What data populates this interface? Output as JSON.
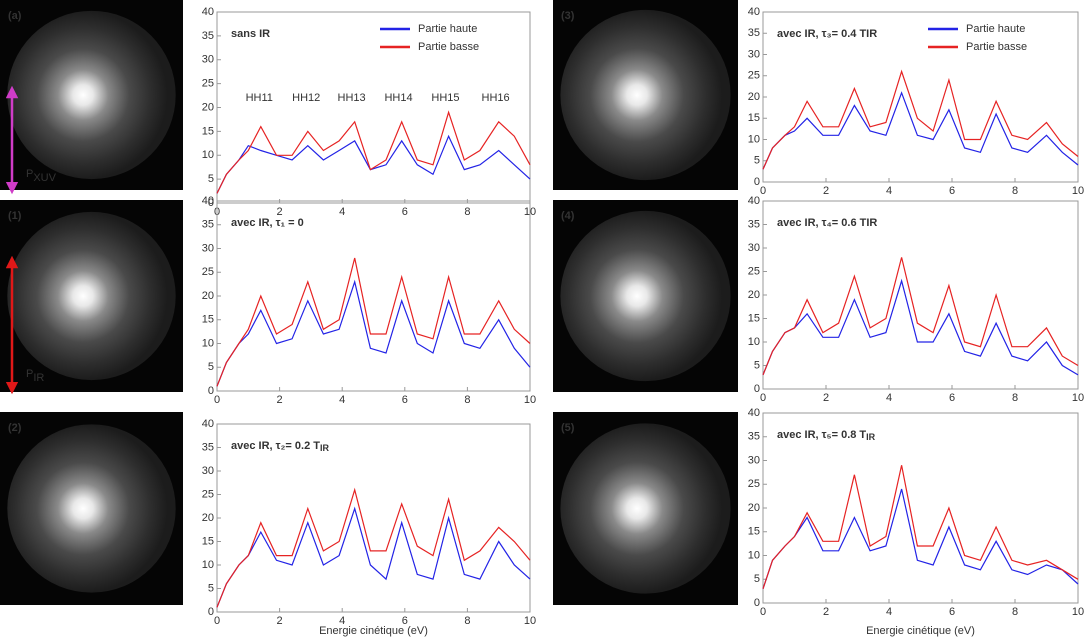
{
  "chart_data": [
    {
      "type": "line",
      "panel_label": "(a)",
      "title": "sans IR",
      "polarization": {
        "main": "P",
        "sub": "XUV",
        "color": "#d03cc8"
      },
      "legend": "upper right",
      "annotations": [
        "HH11",
        "HH12",
        "HH13",
        "HH14",
        "HH15",
        "HH16"
      ],
      "x": [
        0,
        0.3,
        0.7,
        1.0,
        1.4,
        1.9,
        2.4,
        2.9,
        3.4,
        3.9,
        4.4,
        4.9,
        5.4,
        5.9,
        6.4,
        6.9,
        7.4,
        7.9,
        8.4,
        9.0,
        9.5,
        10
      ],
      "series": [
        {
          "name": "Partie haute",
          "color": "#2323e6",
          "values": [
            2,
            6,
            9,
            12,
            11,
            10,
            9,
            12,
            9,
            11,
            13,
            7,
            8,
            13,
            8,
            6,
            14,
            7,
            8,
            11,
            8,
            5
          ]
        },
        {
          "name": "Partie basse",
          "color": "#e62323",
          "values": [
            2,
            6,
            9,
            11,
            16,
            10,
            10,
            15,
            11,
            13,
            17,
            7,
            9,
            17,
            9,
            8,
            19,
            9,
            11,
            17,
            14,
            8
          ]
        }
      ],
      "xlim": [
        0,
        10
      ],
      "xticks": [
        0,
        2,
        4,
        6,
        8,
        10
      ],
      "ylim": [
        0,
        40
      ],
      "yticks": [
        0,
        5,
        10,
        15,
        20,
        25,
        30,
        35,
        40
      ]
    },
    {
      "type": "line",
      "panel_label": "(1)",
      "title": "avec IR,  τ₁ = 0",
      "polarization": {
        "main": "P",
        "sub": "IR",
        "color": "#e01818"
      },
      "x": [
        0,
        0.3,
        0.7,
        1.0,
        1.4,
        1.9,
        2.4,
        2.9,
        3.4,
        3.9,
        4.4,
        4.9,
        5.4,
        5.9,
        6.4,
        6.9,
        7.4,
        7.9,
        8.4,
        9.0,
        9.5,
        10
      ],
      "series": [
        {
          "color": "#2323e6",
          "values": [
            1,
            6,
            10,
            12,
            17,
            10,
            11,
            19,
            12,
            13,
            23,
            9,
            8,
            19,
            10,
            8,
            19,
            10,
            9,
            15,
            9,
            5
          ]
        },
        {
          "color": "#e62323",
          "values": [
            1,
            6,
            10,
            13,
            20,
            12,
            14,
            23,
            13,
            15,
            28,
            12,
            12,
            24,
            12,
            11,
            24,
            12,
            12,
            19,
            13,
            10
          ]
        }
      ],
      "xlim": [
        0,
        10
      ],
      "xticks": [
        0,
        2,
        4,
        6,
        8,
        10
      ],
      "ylim": [
        0,
        40
      ],
      "yticks": [
        0,
        5,
        10,
        15,
        20,
        25,
        30,
        35,
        40
      ]
    },
    {
      "type": "line",
      "panel_label": "(2)",
      "title": "avec IR, τ₂= 0.2 T",
      "title_subscript": "IR",
      "xlabel": "Energie cinétique (eV)",
      "x": [
        0,
        0.3,
        0.7,
        1.0,
        1.4,
        1.9,
        2.4,
        2.9,
        3.4,
        3.9,
        4.4,
        4.9,
        5.4,
        5.9,
        6.4,
        6.9,
        7.4,
        7.9,
        8.4,
        9.0,
        9.5,
        10
      ],
      "series": [
        {
          "color": "#2323e6",
          "values": [
            1,
            6,
            10,
            12,
            17,
            11,
            10,
            19,
            10,
            12,
            22,
            10,
            7,
            19,
            8,
            7,
            20,
            8,
            7,
            15,
            10,
            7
          ]
        },
        {
          "color": "#e62323",
          "values": [
            1,
            6,
            10,
            12,
            19,
            12,
            12,
            22,
            13,
            15,
            26,
            13,
            13,
            23,
            14,
            12,
            24,
            11,
            13,
            18,
            15,
            11
          ]
        }
      ],
      "xlim": [
        0,
        10
      ],
      "xticks": [
        0,
        2,
        4,
        6,
        8,
        10
      ],
      "ylim": [
        0,
        40
      ],
      "yticks": [
        0,
        5,
        10,
        15,
        20,
        25,
        30,
        35,
        40
      ]
    },
    {
      "type": "line",
      "panel_label": "(3)",
      "title": "avec IR, τ₃= 0.4 TIR",
      "legend": "upper right",
      "x": [
        0,
        0.3,
        0.7,
        1.0,
        1.4,
        1.9,
        2.4,
        2.9,
        3.4,
        3.9,
        4.4,
        4.9,
        5.4,
        5.9,
        6.4,
        6.9,
        7.4,
        7.9,
        8.4,
        9.0,
        9.5,
        10
      ],
      "series": [
        {
          "name": "Partie haute",
          "color": "#2323e6",
          "values": [
            3,
            8,
            11,
            12,
            15,
            11,
            11,
            18,
            12,
            11,
            21,
            11,
            10,
            17,
            8,
            7,
            16,
            8,
            7,
            11,
            7,
            4
          ]
        },
        {
          "name": "Partie basse",
          "color": "#e62323",
          "values": [
            3,
            8,
            11,
            13,
            19,
            13,
            13,
            22,
            13,
            14,
            26,
            15,
            12,
            24,
            10,
            10,
            19,
            11,
            10,
            14,
            9,
            6
          ]
        }
      ],
      "xlim": [
        0,
        10
      ],
      "xticks": [
        0,
        2,
        4,
        6,
        8,
        10
      ],
      "ylim": [
        0,
        40
      ],
      "yticks": [
        0,
        5,
        10,
        15,
        20,
        25,
        30,
        35,
        40
      ]
    },
    {
      "type": "line",
      "panel_label": "(4)",
      "title": "avec IR, τ₄= 0.6 TIR",
      "x": [
        0,
        0.3,
        0.7,
        1.0,
        1.4,
        1.9,
        2.4,
        2.9,
        3.4,
        3.9,
        4.4,
        4.9,
        5.4,
        5.9,
        6.4,
        6.9,
        7.4,
        7.9,
        8.4,
        9.0,
        9.5,
        10
      ],
      "series": [
        {
          "color": "#2323e6",
          "values": [
            3,
            8,
            12,
            13,
            16,
            11,
            11,
            19,
            11,
            12,
            23,
            10,
            10,
            16,
            8,
            7,
            14,
            7,
            6,
            10,
            5,
            3
          ]
        },
        {
          "color": "#e62323",
          "values": [
            3,
            8,
            12,
            13,
            19,
            12,
            14,
            24,
            13,
            15,
            28,
            14,
            12,
            22,
            10,
            9,
            20,
            9,
            9,
            13,
            7,
            5
          ]
        }
      ],
      "xlim": [
        0,
        10
      ],
      "xticks": [
        0,
        2,
        4,
        6,
        8,
        10
      ],
      "ylim": [
        0,
        40
      ],
      "yticks": [
        0,
        5,
        10,
        15,
        20,
        25,
        30,
        35,
        40
      ]
    },
    {
      "type": "line",
      "panel_label": "(5)",
      "title": "avec IR, τ₅= 0.8 T",
      "title_subscript": "IR",
      "xlabel": "Energie cinétique (eV)",
      "x": [
        0,
        0.3,
        0.7,
        1.0,
        1.4,
        1.9,
        2.4,
        2.9,
        3.4,
        3.9,
        4.4,
        4.9,
        5.4,
        5.9,
        6.4,
        6.9,
        7.4,
        7.9,
        8.4,
        9.0,
        9.5,
        10
      ],
      "series": [
        {
          "color": "#2323e6",
          "values": [
            3,
            9,
            12,
            14,
            18,
            11,
            11,
            18,
            11,
            12,
            24,
            9,
            8,
            16,
            8,
            7,
            13,
            7,
            6,
            8,
            7,
            4
          ]
        },
        {
          "color": "#e62323",
          "values": [
            3,
            9,
            12,
            14,
            19,
            13,
            13,
            27,
            12,
            14,
            29,
            12,
            12,
            20,
            10,
            9,
            16,
            9,
            8,
            9,
            7,
            5
          ]
        }
      ],
      "xlim": [
        0,
        10
      ],
      "xticks": [
        0,
        2,
        4,
        6,
        8,
        10
      ],
      "ylim": [
        0,
        40
      ],
      "yticks": [
        0,
        5,
        10,
        15,
        20,
        25,
        30,
        35,
        40
      ]
    }
  ]
}
